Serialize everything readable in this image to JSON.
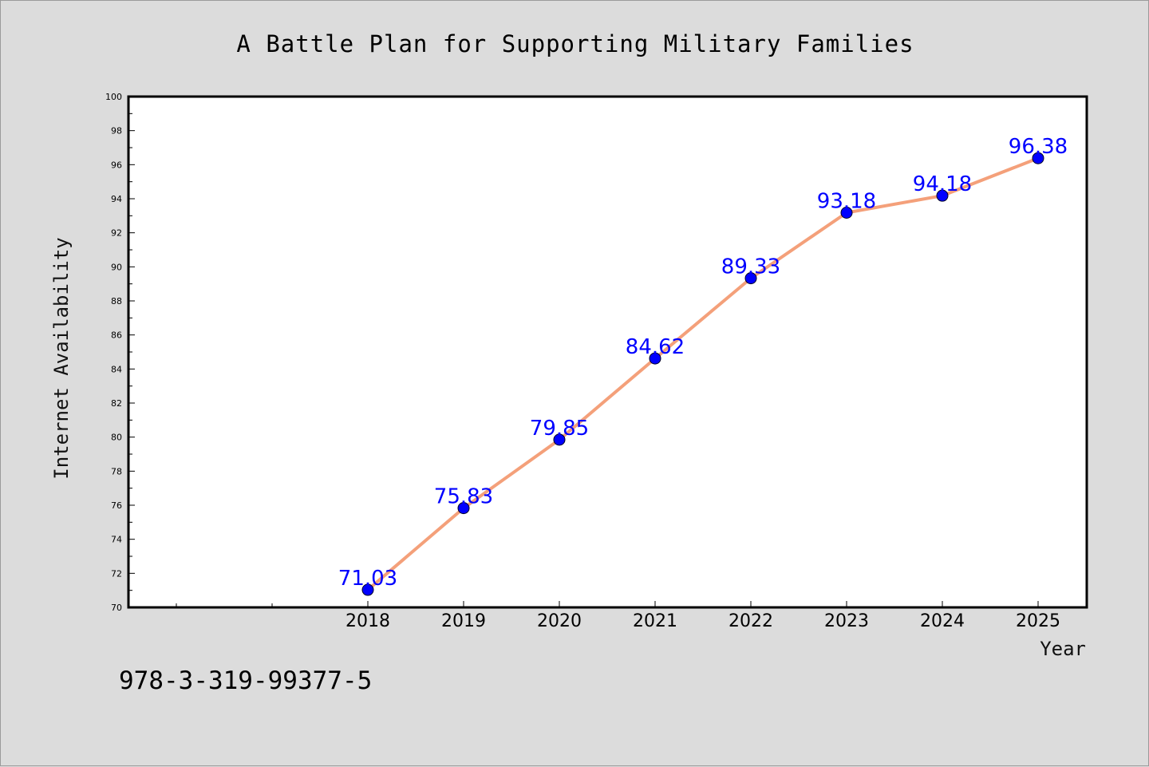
{
  "chart_data": {
    "type": "line",
    "title": "A Battle Plan for Supporting Military Families",
    "xlabel": "Year",
    "ylabel": "Internet Availability",
    "categories": [
      "2018",
      "2019",
      "2020",
      "2021",
      "2022",
      "2023",
      "2024",
      "2025"
    ],
    "series": [
      {
        "values": [
          71.03,
          75.83,
          79.85,
          84.62,
          89.33,
          93.18,
          94.18,
          96.38
        ]
      }
    ],
    "data_labels": [
      "71.03",
      "75.83",
      "79.85",
      "84.62",
      "89.33",
      "93.18",
      "94.18",
      "96.38"
    ],
    "ylim": [
      70,
      100
    ],
    "yticks": [
      "70",
      "72",
      "74",
      "76",
      "78",
      "80",
      "82",
      "84",
      "86",
      "88",
      "90",
      "92",
      "94",
      "96",
      "98",
      "100"
    ],
    "grid": false,
    "colors": {
      "line": "#f4a07a",
      "marker": "#0000ff",
      "label": "#0000ff",
      "background": "#dcdcdc",
      "plot_background": "#ffffff"
    }
  },
  "footnote": "978-3-319-99377-5"
}
